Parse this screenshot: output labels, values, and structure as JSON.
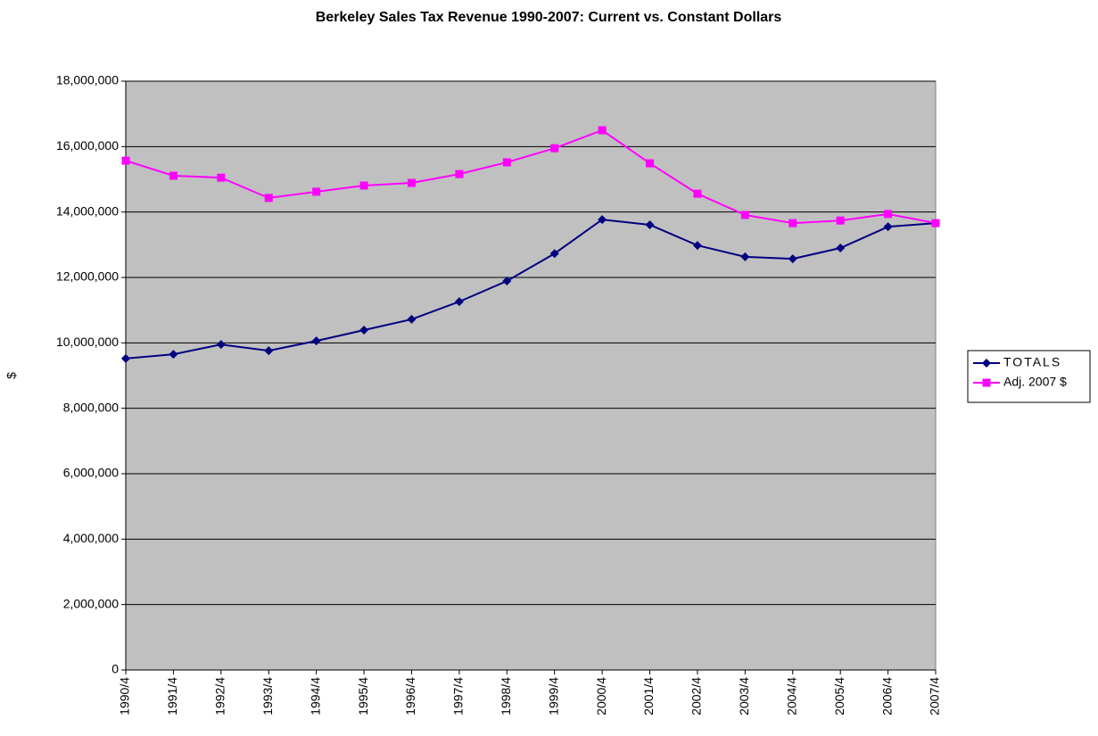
{
  "chart_data": {
    "type": "line",
    "title": "Berkeley Sales Tax Revenue 1990-2007: Current vs. Constant Dollars",
    "ylabel": "$",
    "categories": [
      "1990/4",
      "1991/4",
      "1992/4",
      "1993/4",
      "1994/4",
      "1995/4",
      "1996/4",
      "1997/4",
      "1998/4",
      "1999/4",
      "2000/4",
      "2001/4",
      "2002/4",
      "2003/4",
      "2004/4",
      "2005/4",
      "2006/4",
      "2007/4"
    ],
    "series": [
      {
        "name": "TOTALS",
        "color": "#000080",
        "marker": "diamond",
        "values": [
          9520000,
          9650000,
          9950000,
          9760000,
          10060000,
          10390000,
          10720000,
          11260000,
          11890000,
          12730000,
          13770000,
          13610000,
          12980000,
          12630000,
          12570000,
          12900000,
          13550000,
          13660000
        ]
      },
      {
        "name": "Adj. 2007 $",
        "color": "#ff00ff",
        "marker": "square",
        "values": [
          15570000,
          15110000,
          15050000,
          14430000,
          14620000,
          14810000,
          14890000,
          15160000,
          15520000,
          15950000,
          16500000,
          15490000,
          14560000,
          13910000,
          13660000,
          13740000,
          13940000,
          13660000
        ]
      }
    ],
    "ylim": [
      0,
      18000000
    ],
    "yticks": [
      0,
      {
        "value": 2000000,
        "label": "2,000,000"
      },
      {
        "value": 4000000,
        "label": "4,000,000"
      },
      {
        "value": 6000000,
        "label": "6,000,000"
      },
      {
        "value": 8000000,
        "label": "8,000,000"
      },
      {
        "value": 10000000,
        "label": "10,000,000"
      },
      {
        "value": 12000000,
        "label": "12,000,000"
      },
      {
        "value": 14000000,
        "label": "14,000,000"
      },
      {
        "value": 16000000,
        "label": "16,000,000"
      },
      {
        "value": 18000000,
        "label": "18,000,000"
      }
    ],
    "grid": true,
    "plot_background": "#c0c0c0",
    "legend": "right"
  }
}
